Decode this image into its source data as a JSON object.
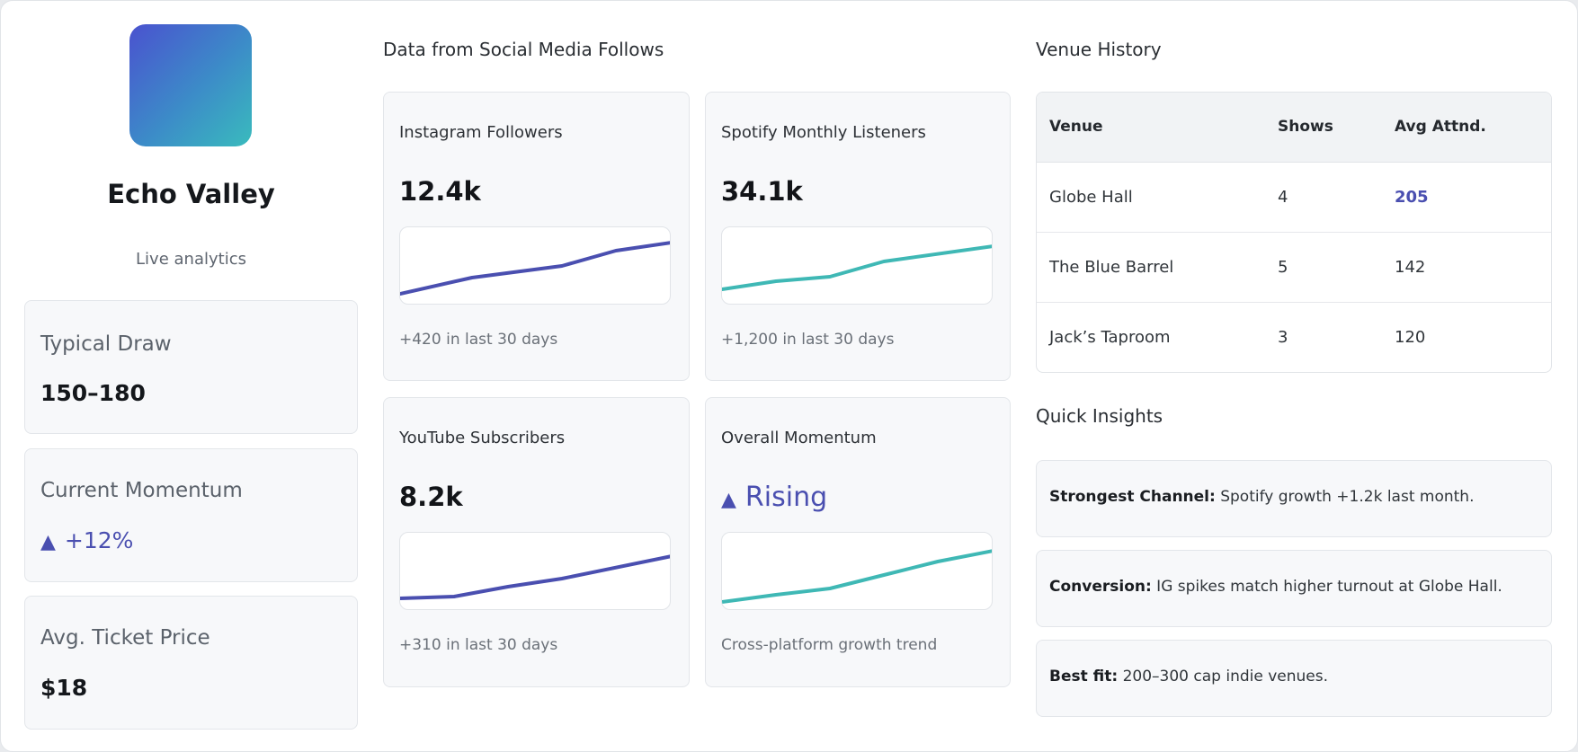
{
  "profile": {
    "name": "Echo Valley",
    "subtitle": "Live analytics"
  },
  "stats": [
    {
      "label": "Typical Draw",
      "value": "150–180"
    },
    {
      "label": "Current Momentum",
      "value": "+12%",
      "icon": "triangle-up-icon"
    },
    {
      "label": "Avg. Ticket Price",
      "value": "$18"
    }
  ],
  "social": {
    "section_title": "Data from Social Media Follows",
    "cards": [
      {
        "title": "Instagram Followers",
        "value": "12.4k",
        "note": "+420 in last 30 days"
      },
      {
        "title": "Spotify Monthly Listeners",
        "value": "34.1k",
        "note": "+1,200 in last 30 days"
      },
      {
        "title": "YouTube Subscribers",
        "value": "8.2k",
        "note": "+310 in last 30 days"
      },
      {
        "title": "Overall Momentum",
        "value": "Rising",
        "icon": "triangle-up-icon",
        "note": "Cross-platform growth trend"
      }
    ]
  },
  "venues": {
    "section_title": "Venue History",
    "headers": [
      "Venue",
      "Shows",
      "Avg Attnd."
    ],
    "rows": [
      [
        "Globe Hall",
        "4",
        "205"
      ],
      [
        "The Blue Barrel",
        "5",
        "142"
      ],
      [
        "Jack’s Taproom",
        "3",
        "120"
      ]
    ]
  },
  "insights": {
    "section_title": "Quick Insights",
    "items": [
      {
        "label": "Strongest Channel:",
        "text": " Spotify growth +1.2k last month."
      },
      {
        "label": "Conversion:",
        "text": " IG spikes match higher turnout at Globe Hall."
      },
      {
        "label": "Best fit:",
        "text": " 200–300 cap indie venues."
      }
    ]
  },
  "colors": {
    "accent": "#4a4fb0",
    "teal": "#3fb8b5",
    "logo_start": "#4a52cf",
    "logo_end": "#39bbbd"
  }
}
